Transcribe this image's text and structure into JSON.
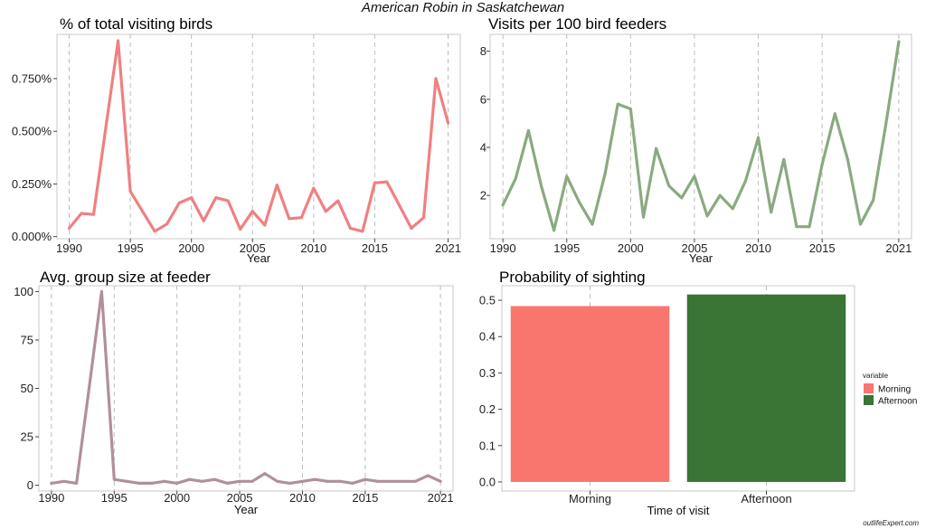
{
  "title": "American Robin in Saskatchewan",
  "watermark": "outlifeExpert.com",
  "chart_data": [
    {
      "type": "line",
      "title": "% of total visiting birds",
      "xlabel": "Year",
      "ylabel": "",
      "color": "#f08080",
      "x": [
        1990,
        1991,
        1992,
        1993,
        1994,
        1995,
        1996,
        1997,
        1998,
        1999,
        2000,
        2001,
        2002,
        2003,
        2004,
        2005,
        2006,
        2007,
        2008,
        2009,
        2010,
        2011,
        2012,
        2013,
        2014,
        2015,
        2016,
        2017,
        2018,
        2019,
        2020,
        2021
      ],
      "values": [
        0.04,
        0.11,
        0.105,
        0.52,
        0.93,
        0.215,
        0.12,
        0.025,
        0.06,
        0.16,
        0.185,
        0.075,
        0.185,
        0.17,
        0.035,
        0.12,
        0.055,
        0.245,
        0.085,
        0.09,
        0.23,
        0.12,
        0.17,
        0.04,
        0.025,
        0.255,
        0.26,
        0.15,
        0.04,
        0.09,
        0.75,
        0.54
      ],
      "xlim": [
        1989,
        2022
      ],
      "ylim": [
        -0.01,
        0.96
      ],
      "x_ticks": [
        1990,
        1995,
        2000,
        2005,
        2010,
        2015,
        2021
      ],
      "x_tick_labels": [
        "1990",
        "1995",
        "2000",
        "2005",
        "2010",
        "2015",
        "2021"
      ],
      "y_ticks": [
        0,
        0.25,
        0.5,
        0.75
      ],
      "y_tick_labels": [
        "0.000%",
        "0.250%",
        "0.500%",
        "0.750%"
      ],
      "grid": "vertical dashed"
    },
    {
      "type": "line",
      "title": "Visits per 100 bird feeders",
      "xlabel": "Year",
      "ylabel": "",
      "color": "#8aaa80",
      "x": [
        1990,
        1991,
        1992,
        1993,
        1994,
        1995,
        1996,
        1997,
        1998,
        1999,
        2000,
        2001,
        2002,
        2003,
        2004,
        2005,
        2006,
        2007,
        2008,
        2009,
        2010,
        2011,
        2012,
        2013,
        2014,
        2015,
        2016,
        2017,
        2018,
        2019,
        2020,
        2021
      ],
      "values": [
        1.6,
        2.7,
        4.7,
        2.4,
        0.55,
        2.8,
        1.7,
        0.8,
        2.9,
        5.8,
        5.6,
        1.1,
        3.95,
        2.4,
        1.9,
        2.8,
        1.15,
        2.0,
        1.45,
        2.6,
        4.4,
        1.3,
        3.5,
        0.7,
        0.7,
        3.3,
        5.4,
        3.5,
        0.8,
        1.8,
        5.0,
        8.4
      ],
      "xlim": [
        1989,
        2022
      ],
      "ylim": [
        0.2,
        8.7
      ],
      "x_ticks": [
        1990,
        1995,
        2000,
        2005,
        2010,
        2015,
        2021
      ],
      "x_tick_labels": [
        "1990",
        "1995",
        "2000",
        "2005",
        "2010",
        "2015",
        "2021"
      ],
      "y_ticks": [
        2,
        4,
        6,
        8
      ],
      "y_tick_labels": [
        "2",
        "4",
        "6",
        "8"
      ],
      "grid": "vertical dashed"
    },
    {
      "type": "line",
      "title": "Avg. group size at feeder",
      "xlabel": "Year",
      "ylabel": "",
      "color": "#b09098",
      "x": [
        1990,
        1991,
        1992,
        1993,
        1994,
        1995,
        1996,
        1997,
        1998,
        1999,
        2000,
        2001,
        2002,
        2003,
        2004,
        2005,
        2006,
        2007,
        2008,
        2009,
        2010,
        2011,
        2012,
        2013,
        2014,
        2015,
        2016,
        2017,
        2018,
        2019,
        2020,
        2021
      ],
      "values": [
        1,
        2,
        1,
        50,
        100,
        3,
        2,
        1,
        1,
        2,
        1,
        3,
        2,
        3,
        1,
        2,
        2,
        6,
        2,
        1,
        2,
        3,
        2,
        2,
        1,
        3,
        2,
        2,
        2,
        2,
        5,
        2
      ],
      "xlim": [
        1989,
        2022
      ],
      "ylim": [
        -3,
        103
      ],
      "x_ticks": [
        1990,
        1995,
        2000,
        2005,
        2010,
        2015,
        2021
      ],
      "x_tick_labels": [
        "1990",
        "1995",
        "2000",
        "2005",
        "2010",
        "2015",
        "2021"
      ],
      "y_ticks": [
        0,
        25,
        50,
        75,
        100
      ],
      "y_tick_labels": [
        "0",
        "25",
        "50",
        "75",
        "100"
      ],
      "grid": "vertical dashed"
    },
    {
      "type": "bar",
      "title": "Probability of sighting",
      "xlabel": "Time of visit",
      "ylabel": "",
      "categories": [
        "Morning",
        "Afternoon"
      ],
      "values": [
        0.484,
        0.516
      ],
      "colors": [
        "#f8766d",
        "#3a7535"
      ],
      "ylim": [
        -0.025,
        0.54
      ],
      "y_ticks": [
        0,
        0.1,
        0.2,
        0.3,
        0.4,
        0.5
      ],
      "y_tick_labels": [
        "0.0",
        "0.1",
        "0.2",
        "0.3",
        "0.4",
        "0.5"
      ],
      "grid": "vertical dashed",
      "legend": {
        "title": "variable",
        "placement": "right",
        "entries": [
          "Morning",
          "Afternoon"
        ]
      }
    }
  ]
}
